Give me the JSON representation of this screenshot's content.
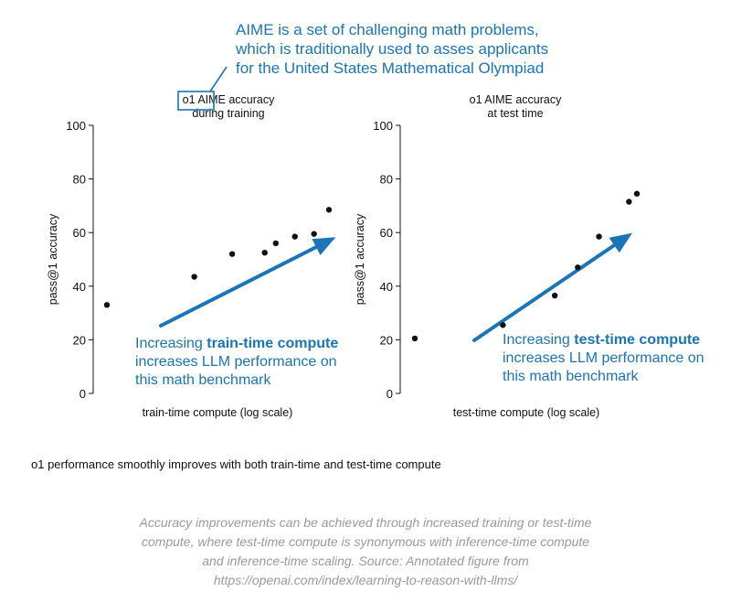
{
  "callout": {
    "lines": [
      "AIME is a set of challenging math problems,",
      "which is traditionally used to asses applicants",
      "for the  United States Mathematical Olympiad"
    ]
  },
  "charts": [
    {
      "title_prefix": "o1 ",
      "title_highlight": "AIME",
      "title_suffix": " accuracy",
      "title_line2": "during training",
      "note_prefix": "Increasing ",
      "note_bold": "train-time compute",
      "note_line2": "increases LLM performance on",
      "note_line3": "this math benchmark"
    },
    {
      "title_line1": "o1 AIME accuracy",
      "title_line2": "at test time",
      "note_prefix": "Increasing ",
      "note_bold": "test-time compute",
      "note_line2": "increases LLM performance on",
      "note_line3": "this math benchmark"
    }
  ],
  "chart_data": [
    {
      "type": "scatter",
      "title": "o1 AIME accuracy during training",
      "xlabel": "train-time compute (log scale)",
      "ylabel": "pass@1 accuracy",
      "ylim": [
        0,
        100
      ],
      "yticks": [
        0,
        20,
        40,
        60,
        80,
        100
      ],
      "xscale": "log",
      "x_tick_labels": "none",
      "series": [
        {
          "x": [
            1,
            2.3,
            3.3,
            4.5,
            5.0,
            6.0,
            7.2,
            8.3
          ],
          "y": [
            33,
            43.5,
            52,
            52.5,
            56,
            58.5,
            59.5,
            68.5
          ]
        }
      ],
      "arrow_color": "#1a74b8"
    },
    {
      "type": "scatter",
      "title": "o1 AIME accuracy at test time",
      "xlabel": "test-time compute (log scale)",
      "ylabel": "pass@1 accuracy",
      "ylim": [
        0,
        100
      ],
      "yticks": [
        0,
        20,
        40,
        60,
        80,
        100
      ],
      "xscale": "log",
      "x_tick_labels": "none",
      "series": [
        {
          "x": [
            1,
            2.2,
            3.5,
            4.3,
            5.2,
            6.8,
            7.3
          ],
          "y": [
            20.5,
            25.5,
            36.5,
            47,
            58.5,
            71.5,
            74.5
          ]
        }
      ],
      "arrow_color": "#1a74b8"
    }
  ],
  "caption": "o1 performance smoothly improves with both train-time and test-time compute",
  "source_caption": {
    "lines": [
      "Accuracy improvements can be achieved through increased training or test-time",
      "compute, where test-time compute is synonymous with inference-time compute",
      "and inference-time scaling. Source: Annotated figure from",
      "https://openai.com/index/learning-to-reason-with-llms/"
    ]
  },
  "colors": {
    "accent": "#1a74b8",
    "text": "#111111",
    "caption_gray": "#9a9a9a"
  }
}
